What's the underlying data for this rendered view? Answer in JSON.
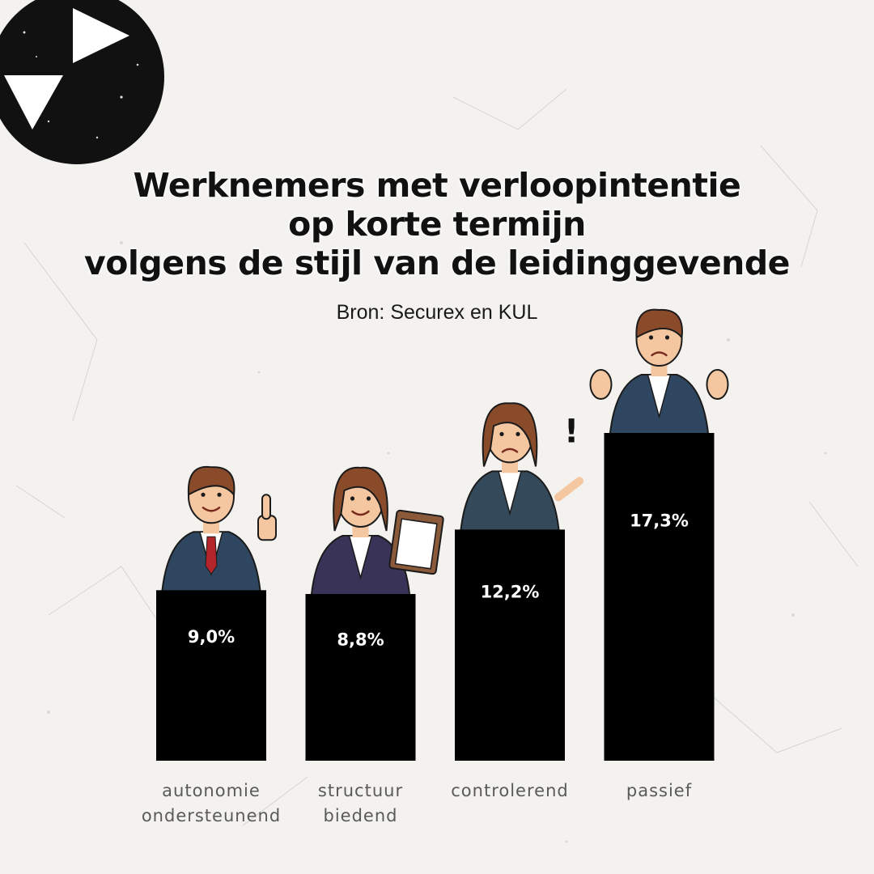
{
  "header": {
    "title_lines": [
      "Werknemers met verloopintentie",
      "op korte termijn",
      "volgens de stijl van de leidinggevende"
    ],
    "source": "Bron: Securex en KUL"
  },
  "logo": {
    "icon": "play-arrows-icon"
  },
  "colors": {
    "bar": "#000000",
    "background": "#f3f2ef",
    "suit_blue": "#2f4660",
    "suit_navy": "#3a3358",
    "suit_teal": "#34495a",
    "skin": "#f4c7a1",
    "hair_brown": "#8a4b2b"
  },
  "chart_data": {
    "type": "bar",
    "title": "Werknemers met verloopintentie op korte termijn volgens de stijl van de leidinggevende",
    "categories": [
      [
        "autonomie",
        "ondersteunend"
      ],
      [
        "structuur",
        "biedend"
      ],
      [
        "controlerend"
      ],
      [
        "passief"
      ]
    ],
    "values": [
      9.0,
      8.8,
      12.2,
      17.3
    ],
    "value_labels": [
      "9,0%",
      "8,8%",
      "12,2%",
      "17,3%"
    ],
    "ylim": [
      0,
      17.3
    ],
    "grid": false,
    "illustrations": [
      "thumbs-up-manager-icon",
      "clipboard-manager-icon",
      "pointing-manager-icon",
      "shrugging-manager-icon"
    ]
  }
}
